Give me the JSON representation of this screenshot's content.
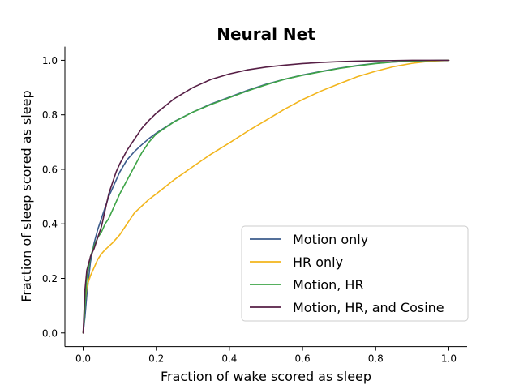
{
  "chart_data": {
    "type": "line",
    "title": "Neural Net",
    "xlabel": "Fraction of wake scored as sleep",
    "ylabel": "Fraction of sleep scored as sleep",
    "xlim": [
      -0.05,
      1.05
    ],
    "ylim": [
      -0.05,
      1.05
    ],
    "xticks": [
      "0.0",
      "0.2",
      "0.4",
      "0.6",
      "0.8",
      "1.0"
    ],
    "yticks": [
      "0.0",
      "0.2",
      "0.4",
      "0.6",
      "0.8",
      "1.0"
    ],
    "grid": false,
    "legend_position": "lower-right",
    "series": [
      {
        "name": "Motion only",
        "color": "#3b5b8c",
        "x": [
          0.0,
          0.005,
          0.01,
          0.02,
          0.03,
          0.04,
          0.05,
          0.06,
          0.07,
          0.08,
          0.09,
          0.1,
          0.12,
          0.14,
          0.16,
          0.18,
          0.2,
          0.25,
          0.3,
          0.35,
          0.4,
          0.45,
          0.5,
          0.55,
          0.6,
          0.65,
          0.7,
          0.75,
          0.8,
          0.85,
          0.9,
          0.95,
          1.0
        ],
        "y": [
          0.0,
          0.06,
          0.14,
          0.26,
          0.33,
          0.38,
          0.42,
          0.46,
          0.5,
          0.53,
          0.56,
          0.59,
          0.635,
          0.665,
          0.69,
          0.713,
          0.733,
          0.776,
          0.81,
          0.84,
          0.865,
          0.89,
          0.912,
          0.93,
          0.946,
          0.959,
          0.971,
          0.981,
          0.989,
          0.994,
          0.997,
          0.999,
          1.0
        ]
      },
      {
        "name": "HR only",
        "color": "#f2b51c",
        "x": [
          0.0,
          0.005,
          0.01,
          0.02,
          0.03,
          0.04,
          0.05,
          0.06,
          0.08,
          0.1,
          0.12,
          0.14,
          0.16,
          0.18,
          0.2,
          0.25,
          0.3,
          0.35,
          0.4,
          0.45,
          0.5,
          0.55,
          0.6,
          0.65,
          0.7,
          0.75,
          0.8,
          0.85,
          0.9,
          0.95,
          1.0
        ],
        "y": [
          0.0,
          0.11,
          0.17,
          0.21,
          0.24,
          0.27,
          0.29,
          0.305,
          0.33,
          0.36,
          0.4,
          0.44,
          0.465,
          0.49,
          0.51,
          0.563,
          0.61,
          0.656,
          0.697,
          0.74,
          0.78,
          0.82,
          0.856,
          0.887,
          0.914,
          0.94,
          0.96,
          0.977,
          0.989,
          0.997,
          1.0
        ]
      },
      {
        "name": "Motion, HR",
        "color": "#3ea447",
        "x": [
          0.0,
          0.005,
          0.01,
          0.02,
          0.03,
          0.04,
          0.05,
          0.06,
          0.07,
          0.08,
          0.09,
          0.1,
          0.12,
          0.14,
          0.16,
          0.18,
          0.2,
          0.25,
          0.3,
          0.35,
          0.4,
          0.45,
          0.5,
          0.55,
          0.6,
          0.65,
          0.7,
          0.75,
          0.8,
          0.85,
          0.9,
          0.95,
          1.0
        ],
        "y": [
          0.0,
          0.1,
          0.2,
          0.28,
          0.32,
          0.35,
          0.37,
          0.4,
          0.42,
          0.45,
          0.48,
          0.51,
          0.56,
          0.61,
          0.66,
          0.7,
          0.73,
          0.775,
          0.81,
          0.838,
          0.863,
          0.888,
          0.91,
          0.93,
          0.945,
          0.958,
          0.97,
          0.98,
          0.988,
          0.994,
          0.997,
          0.999,
          1.0
        ]
      },
      {
        "name": "Motion, HR, and Cosine",
        "color": "#561e45",
        "x": [
          0.0,
          0.005,
          0.01,
          0.02,
          0.03,
          0.04,
          0.05,
          0.06,
          0.07,
          0.08,
          0.09,
          0.1,
          0.12,
          0.14,
          0.16,
          0.18,
          0.2,
          0.25,
          0.3,
          0.35,
          0.4,
          0.45,
          0.5,
          0.55,
          0.6,
          0.65,
          0.7,
          0.75,
          0.8,
          0.85,
          0.9,
          0.95,
          1.0
        ],
        "y": [
          0.0,
          0.16,
          0.23,
          0.28,
          0.31,
          0.35,
          0.39,
          0.45,
          0.51,
          0.55,
          0.59,
          0.62,
          0.67,
          0.71,
          0.75,
          0.78,
          0.806,
          0.86,
          0.9,
          0.93,
          0.95,
          0.965,
          0.975,
          0.982,
          0.988,
          0.992,
          0.995,
          0.997,
          0.998,
          0.999,
          1.0,
          1.0,
          1.0
        ]
      }
    ]
  }
}
